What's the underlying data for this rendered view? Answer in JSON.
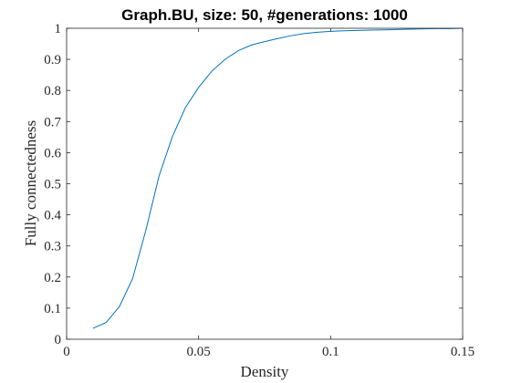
{
  "chart_data": {
    "type": "line",
    "title": "Graph.BU, size: 50, #generations: 1000",
    "xlabel": "Density",
    "ylabel": "Fully connectedness",
    "xlim": [
      0,
      0.15
    ],
    "ylim": [
      0,
      1
    ],
    "grid": false,
    "legend": "none",
    "xticks": [
      0,
      0.05,
      0.1,
      0.15
    ],
    "xtick_labels": [
      "0",
      "0.05",
      "0.1",
      "0.15"
    ],
    "yticks": [
      0,
      0.1,
      0.2,
      0.3,
      0.4,
      0.5,
      0.6,
      0.7,
      0.8,
      0.9,
      1
    ],
    "ytick_labels": [
      "0",
      "0.1",
      "0.2",
      "0.3",
      "0.4",
      "0.5",
      "0.6",
      "0.7",
      "0.8",
      "0.9",
      "1"
    ],
    "series": [
      {
        "color": "#0072bd",
        "x": [
          0.01,
          0.015,
          0.02,
          0.025,
          0.03,
          0.035,
          0.04,
          0.045,
          0.05,
          0.055,
          0.06,
          0.065,
          0.07,
          0.075,
          0.08,
          0.085,
          0.09,
          0.095,
          0.1,
          0.105,
          0.11,
          0.115,
          0.12,
          0.125,
          0.13,
          0.135,
          0.14,
          0.145,
          0.15
        ],
        "y": [
          0.035,
          0.054,
          0.105,
          0.195,
          0.35,
          0.525,
          0.65,
          0.745,
          0.81,
          0.862,
          0.9,
          0.928,
          0.946,
          0.957,
          0.967,
          0.976,
          0.983,
          0.987,
          0.99,
          0.992,
          0.993,
          0.994,
          0.995,
          0.996,
          0.997,
          0.998,
          0.999,
          0.999,
          1.0
        ]
      }
    ]
  }
}
